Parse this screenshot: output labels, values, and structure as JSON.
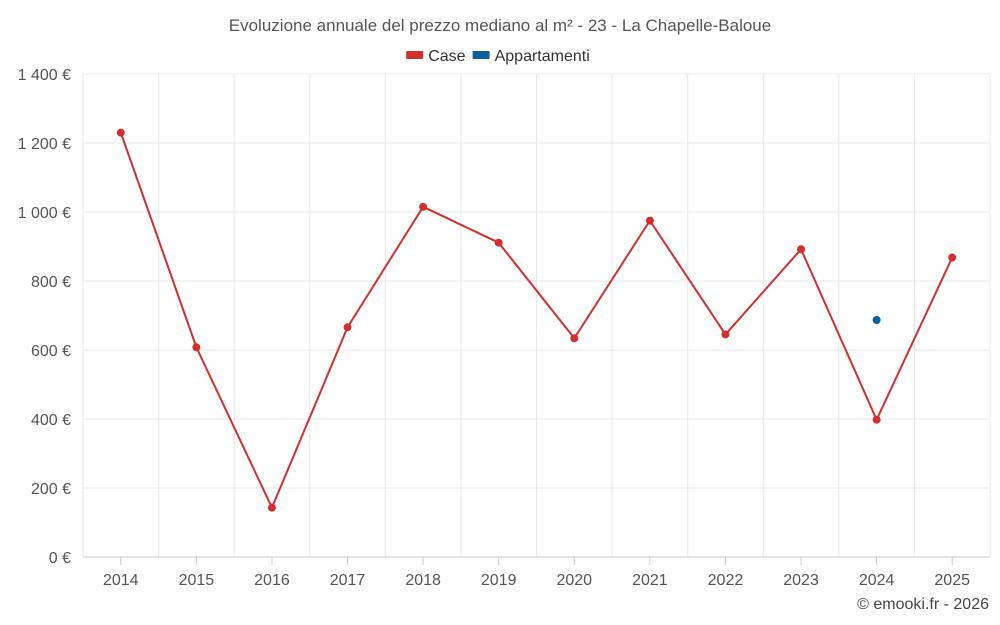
{
  "chart_data": {
    "type": "line",
    "title": "Evoluzione annuale del prezzo mediano al m² - 23 - La Chapelle-Baloue",
    "categories": [
      "2014",
      "2015",
      "2016",
      "2017",
      "2018",
      "2019",
      "2020",
      "2021",
      "2022",
      "2023",
      "2024",
      "2025"
    ],
    "y_ticks": [
      0,
      200,
      400,
      600,
      800,
      1000,
      1200,
      1400
    ],
    "y_tick_labels": [
      "0 €",
      "200 €",
      "400 €",
      "600 €",
      "800 €",
      "1 000 €",
      "1 200 €",
      "1 400 €"
    ],
    "ylim": [
      0,
      1400
    ],
    "xlabel": "",
    "ylabel": "",
    "grid": true,
    "legend_position": "top-center",
    "series": [
      {
        "name": "Case",
        "color": "#d32f2f",
        "values": [
          1230,
          608,
          143,
          666,
          1015,
          911,
          634,
          975,
          645,
          892,
          398,
          868
        ]
      },
      {
        "name": "Appartamenti",
        "color": "#0b5fa0",
        "values": [
          null,
          null,
          null,
          null,
          null,
          null,
          null,
          null,
          null,
          null,
          687,
          null
        ]
      }
    ]
  },
  "credit": "© emooki.fr - 2026"
}
